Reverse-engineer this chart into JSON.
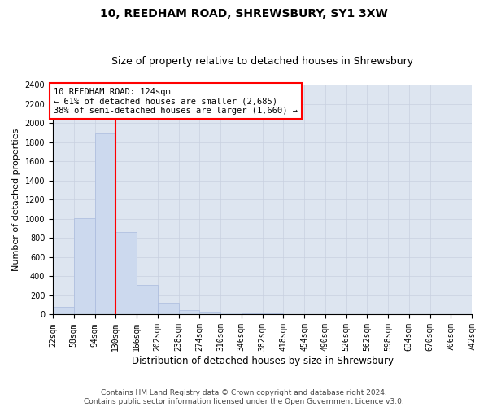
{
  "title": "10, REEDHAM ROAD, SHREWSBURY, SY1 3XW",
  "subtitle": "Size of property relative to detached houses in Shrewsbury",
  "xlabel": "Distribution of detached houses by size in Shrewsbury",
  "ylabel": "Number of detached properties",
  "bar_color": "#ccd9ee",
  "bar_edge_color": "#aabbdd",
  "grid_color": "#c8d0e0",
  "background_color": "#dde5f0",
  "vline_x": 130,
  "vline_color": "red",
  "annotation_line1": "10 REEDHAM ROAD: 124sqm",
  "annotation_line2": "← 61% of detached houses are smaller (2,685)",
  "annotation_line3": "38% of semi-detached houses are larger (1,660) →",
  "annotation_box_color": "white",
  "annotation_box_edge": "red",
  "bin_edges": [
    22,
    58,
    94,
    130,
    166,
    202,
    238,
    274,
    310,
    346,
    382,
    418,
    454,
    490,
    526,
    562,
    598,
    634,
    670,
    706,
    742
  ],
  "bin_counts": [
    80,
    1010,
    1890,
    860,
    310,
    120,
    45,
    30,
    20,
    15,
    10,
    8,
    5,
    4,
    3,
    2,
    2,
    1,
    1,
    1
  ],
  "ylim": [
    0,
    2400
  ],
  "yticks": [
    0,
    200,
    400,
    600,
    800,
    1000,
    1200,
    1400,
    1600,
    1800,
    2000,
    2200,
    2400
  ],
  "footer_text": "Contains HM Land Registry data © Crown copyright and database right 2024.\nContains public sector information licensed under the Open Government Licence v3.0.",
  "title_fontsize": 10,
  "subtitle_fontsize": 9,
  "xlabel_fontsize": 8.5,
  "ylabel_fontsize": 8,
  "tick_fontsize": 7,
  "annotation_fontsize": 7.5,
  "footer_fontsize": 6.5
}
